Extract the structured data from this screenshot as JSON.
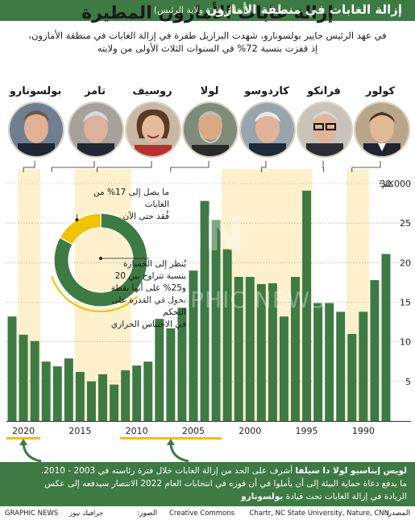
{
  "title": "إزالة غابات الأمازون المطيرة",
  "intro": [
    "في عهد الرئيس جايير بولسونارو، شهدت البرازيل طفرة في إزالة الغابات في منطقة الأمازون،",
    "إذ قفزت بنسبة 72% في السنوات الثلاث الأولى من ولايته"
  ],
  "banner": {
    "title": "إزالة الغابات في منطقة الأمازون",
    "subtitle": "(خلال فترة ولاية الرئيس)"
  },
  "presidents": [
    {
      "name": "كولور",
      "year_start": 1990,
      "year_end": 1992
    },
    {
      "name": "فرانكو",
      "year_start": 1992,
      "year_end": 1995
    },
    {
      "name": "كاردوسو",
      "year_start": 1995,
      "year_end": 2003
    },
    {
      "name": "لولا",
      "year_start": 2003,
      "year_end": 2011
    },
    {
      "name": "روسيف",
      "year_start": 2011,
      "year_end": 2016
    },
    {
      "name": "تامر",
      "year_start": 2016,
      "year_end": 2019
    },
    {
      "name": "بولسونارو",
      "year_start": 2019,
      "year_end": 2021
    }
  ],
  "chart_data": {
    "type": "bar",
    "x": [
      1988,
      1989,
      1990,
      1991,
      1992,
      1993,
      1994,
      1995,
      1996,
      1997,
      1998,
      1999,
      2000,
      2001,
      2002,
      2003,
      2004,
      2005,
      2006,
      2007,
      2008,
      2009,
      2010,
      2011,
      2012,
      2013,
      2014,
      2015,
      2016,
      2017,
      2018,
      2019,
      2020,
      2021
    ],
    "values": [
      21.1,
      17.8,
      13.8,
      11.0,
      13.8,
      14.9,
      14.9,
      29.1,
      18.2,
      13.2,
      17.4,
      17.3,
      18.2,
      18.2,
      21.7,
      25.4,
      27.8,
      19.0,
      14.3,
      11.7,
      12.9,
      7.5,
      7.0,
      6.4,
      4.6,
      5.9,
      5.0,
      6.2,
      7.9,
      6.9,
      7.5,
      10.1,
      10.9,
      13.2
    ],
    "ylim": [
      0,
      30
    ],
    "y_ticks": [
      0,
      5,
      10,
      15,
      20,
      25,
      30
    ],
    "y_tick_labels": [
      "",
      "5",
      "10",
      "15",
      "20",
      "25",
      "30.000"
    ],
    "x_tick_labels": [
      "1990",
      "1995",
      "2000",
      "2005",
      "2010",
      "2015",
      "2020"
    ],
    "x_tick_years": [
      1990,
      1995,
      2000,
      2005,
      2010,
      2015,
      2020
    ],
    "unit_label": "كلم²",
    "x_direction": "right-to-left",
    "bar_color": "#3e7a43",
    "highlight_color": "#f0c200",
    "band_color": "#fdf0cc",
    "donut": {
      "lost_percent": 17,
      "tipping_range": [
        20,
        25
      ],
      "forest_color": "#3e7a43",
      "lost_color": "#f0c200"
    }
  },
  "notes": {
    "lost": [
      "ما يصل إلى 17% من الغابات",
      "فُقد حتى الآن"
    ],
    "tipping": [
      "يُنظر إلى الخسارة",
      "بنسبة تتراوح بين 20",
      "و25% على أنها نقطة",
      "تحول في القدرة على التحكم",
      "في الاحتباس الحراري"
    ]
  },
  "footer": {
    "name": "لويس إيناسيو لولا دا سيلفا",
    "line1_rest": " أشرف على الحد من إزالة الغابات خلال فترة رئاسته في 2003 - 2010.",
    "line2": "ما يدفع دعاة حماية البيئة إلى أن يأملوا في أن فوزه في انتخابات العام 2022 الانتصار سيدفعه إلى عكس",
    "line3_prefix": "الزيادة في إزالة الغابات تحت قيادة ",
    "line3_name": "بولسونارو"
  },
  "credits": {
    "source_label": "المصدر:",
    "source": "Chartr, NC State University, Nature, CNN",
    "photo_label": "الصور:",
    "photo_credit": "Creative Commons",
    "brand": "GRAPHIC NEWS",
    "brand_ar": "جرافيك نيوز"
  },
  "watermark": {
    "gn": "GN",
    "text": "GRAPHIC NEWS"
  }
}
